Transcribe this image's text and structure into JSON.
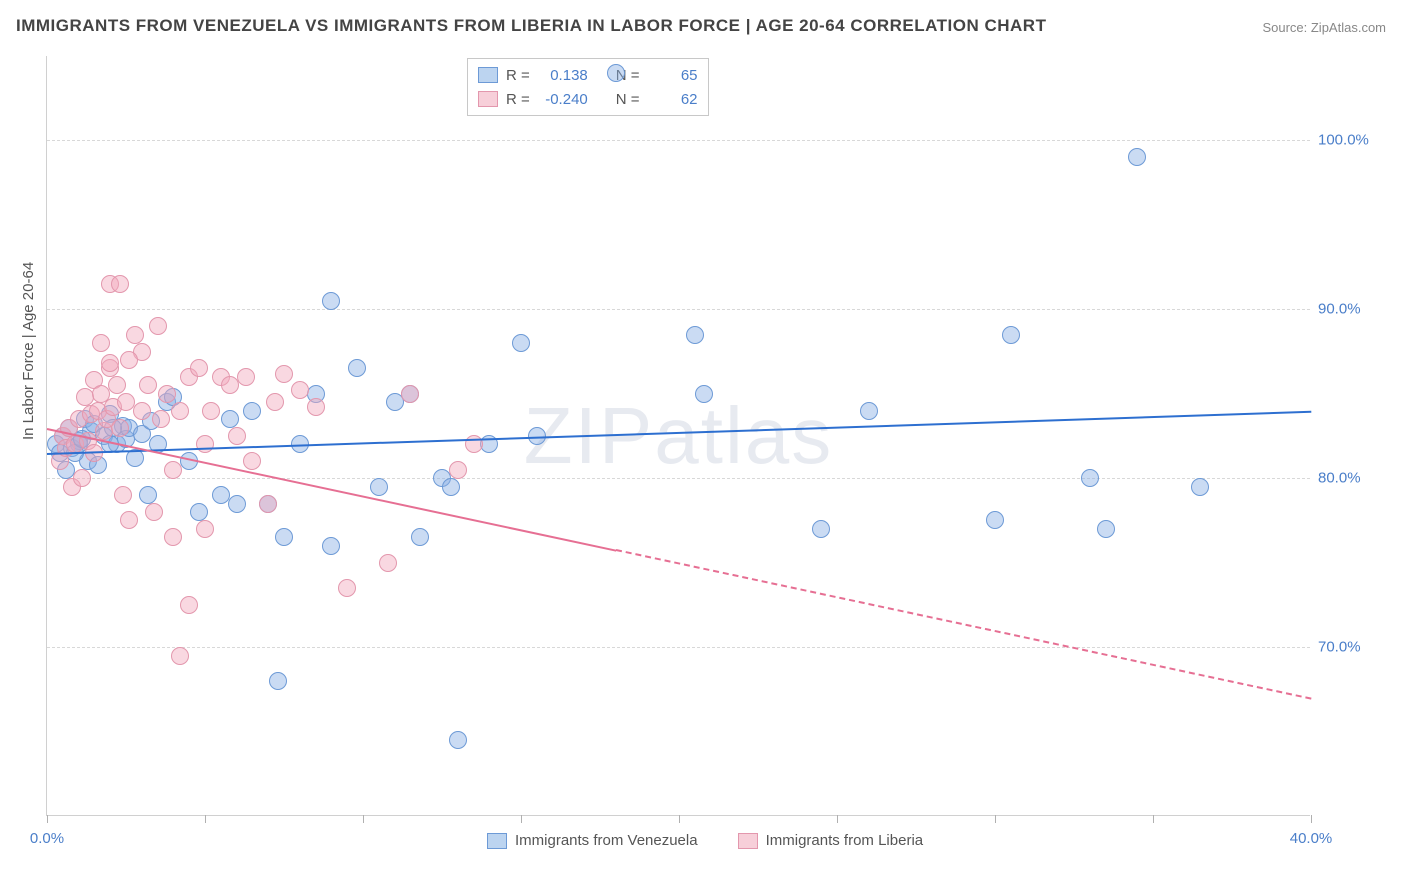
{
  "title": "IMMIGRANTS FROM VENEZUELA VS IMMIGRANTS FROM LIBERIA IN LABOR FORCE | AGE 20-64 CORRELATION CHART",
  "source": "Source: ZipAtlas.com",
  "watermark": "ZIPatlas",
  "ylabel": "In Labor Force | Age 20-64",
  "chart": {
    "type": "scatter",
    "xlim": [
      0,
      40
    ],
    "ylim": [
      60,
      105
    ],
    "x_ticks": [
      0,
      5,
      10,
      15,
      20,
      25,
      30,
      35,
      40
    ],
    "x_tick_labels": {
      "0": "0.0%",
      "40": "40.0%"
    },
    "y_gridlines": [
      70,
      80,
      90,
      100
    ],
    "y_tick_labels": {
      "70": "70.0%",
      "80": "80.0%",
      "90": "90.0%",
      "100": "100.0%"
    },
    "background_color": "#ffffff",
    "grid_color": "#d8d8d8",
    "marker_radius": 9,
    "marker_stroke_width": 1,
    "series": [
      {
        "name": "Immigrants from Venezuela",
        "fill_color": "rgba(137,175,229,0.45)",
        "stroke_color": "#6d9ad6",
        "swatch_fill": "#bcd4f0",
        "swatch_border": "#6d9ad6",
        "r_label": "R =",
        "r_value": "0.138",
        "n_label": "N =",
        "n_value": "65",
        "trend": {
          "x1": 0,
          "y1": 81.5,
          "x2": 40,
          "y2": 84.0,
          "color": "#2d6fd0",
          "solid_until_x": 40
        },
        "points": [
          [
            0.3,
            82.0
          ],
          [
            0.4,
            81.5
          ],
          [
            0.5,
            82.5
          ],
          [
            0.6,
            80.5
          ],
          [
            0.7,
            83.0
          ],
          [
            0.8,
            81.8
          ],
          [
            1.0,
            82.2
          ],
          [
            1.2,
            83.5
          ],
          [
            1.3,
            81.0
          ],
          [
            1.4,
            82.8
          ],
          [
            1.5,
            83.2
          ],
          [
            1.6,
            80.8
          ],
          [
            1.8,
            82.5
          ],
          [
            2.0,
            83.8
          ],
          [
            2.2,
            82.0
          ],
          [
            2.4,
            83.1
          ],
          [
            2.0,
            82.0
          ],
          [
            2.5,
            82.3
          ],
          [
            2.6,
            83.0
          ],
          [
            2.8,
            81.2
          ],
          [
            3.0,
            82.6
          ],
          [
            3.2,
            79.0
          ],
          [
            3.3,
            83.4
          ],
          [
            3.5,
            82.0
          ],
          [
            3.8,
            84.5
          ],
          [
            4.0,
            84.8
          ],
          [
            4.5,
            81.0
          ],
          [
            4.8,
            78.0
          ],
          [
            5.5,
            79.0
          ],
          [
            5.8,
            83.5
          ],
          [
            6.0,
            78.5
          ],
          [
            6.5,
            84.0
          ],
          [
            7.0,
            78.5
          ],
          [
            7.5,
            76.5
          ],
          [
            7.3,
            68.0
          ],
          [
            8.0,
            82.0
          ],
          [
            8.5,
            85.0
          ],
          [
            9.0,
            76.0
          ],
          [
            9.0,
            90.5
          ],
          [
            9.8,
            86.5
          ],
          [
            10.5,
            79.5
          ],
          [
            11.0,
            84.5
          ],
          [
            11.5,
            85.0
          ],
          [
            11.8,
            76.5
          ],
          [
            12.5,
            80.0
          ],
          [
            12.8,
            79.5
          ],
          [
            13.0,
            64.5
          ],
          [
            14.0,
            82.0
          ],
          [
            15.0,
            88.0
          ],
          [
            15.5,
            82.5
          ],
          [
            18.0,
            104.0
          ],
          [
            20.5,
            88.5
          ],
          [
            20.8,
            85.0
          ],
          [
            24.5,
            77.0
          ],
          [
            26.0,
            84.0
          ],
          [
            30.0,
            77.5
          ],
          [
            30.5,
            88.5
          ],
          [
            33.0,
            80.0
          ],
          [
            33.5,
            77.0
          ],
          [
            34.5,
            99.0
          ],
          [
            36.5,
            79.5
          ],
          [
            2.1,
            83.0
          ],
          [
            1.0,
            82.0
          ],
          [
            0.9,
            81.5
          ],
          [
            1.1,
            82.3
          ]
        ]
      },
      {
        "name": "Immigrants from Liberia",
        "fill_color": "rgba(242,169,189,0.45)",
        "stroke_color": "#e397ad",
        "swatch_fill": "#f7cfd9",
        "swatch_border": "#e397ad",
        "r_label": "R =",
        "r_value": "-0.240",
        "n_label": "N =",
        "n_value": "62",
        "trend": {
          "x1": 0,
          "y1": 83.0,
          "x2": 40,
          "y2": 67.0,
          "color": "#e66f93",
          "solid_until_x": 18
        },
        "points": [
          [
            0.4,
            81.0
          ],
          [
            0.5,
            82.5
          ],
          [
            0.6,
            81.8
          ],
          [
            0.7,
            83.0
          ],
          [
            0.8,
            79.5
          ],
          [
            0.9,
            82.0
          ],
          [
            1.0,
            83.5
          ],
          [
            1.1,
            80.0
          ],
          [
            1.2,
            84.8
          ],
          [
            1.3,
            82.2
          ],
          [
            1.4,
            83.8
          ],
          [
            1.5,
            81.5
          ],
          [
            1.5,
            85.8
          ],
          [
            1.6,
            84.0
          ],
          [
            1.7,
            85.0
          ],
          [
            1.8,
            82.8
          ],
          [
            1.9,
            83.5
          ],
          [
            2.0,
            86.5
          ],
          [
            2.1,
            84.2
          ],
          [
            2.2,
            85.5
          ],
          [
            2.3,
            83.0
          ],
          [
            2.0,
            91.5
          ],
          [
            2.3,
            91.5
          ],
          [
            2.4,
            79.0
          ],
          [
            2.5,
            84.5
          ],
          [
            2.6,
            77.5
          ],
          [
            2.8,
            88.5
          ],
          [
            3.0,
            84.0
          ],
          [
            3.0,
            87.5
          ],
          [
            3.2,
            85.5
          ],
          [
            3.4,
            78.0
          ],
          [
            3.5,
            89.0
          ],
          [
            3.6,
            83.5
          ],
          [
            3.8,
            85.0
          ],
          [
            4.0,
            80.5
          ],
          [
            4.0,
            76.5
          ],
          [
            4.2,
            84.0
          ],
          [
            4.5,
            86.0
          ],
          [
            4.5,
            72.5
          ],
          [
            4.8,
            86.5
          ],
          [
            5.0,
            82.0
          ],
          [
            5.0,
            77.0
          ],
          [
            5.2,
            84.0
          ],
          [
            5.5,
            86.0
          ],
          [
            5.8,
            85.5
          ],
          [
            4.2,
            69.5
          ],
          [
            2.0,
            86.8
          ],
          [
            6.0,
            82.5
          ],
          [
            6.3,
            86.0
          ],
          [
            6.5,
            81.0
          ],
          [
            7.0,
            78.5
          ],
          [
            7.2,
            84.5
          ],
          [
            7.5,
            86.2
          ],
          [
            8.0,
            85.2
          ],
          [
            8.5,
            84.2
          ],
          [
            9.5,
            73.5
          ],
          [
            10.8,
            75.0
          ],
          [
            11.5,
            85.0
          ],
          [
            13.0,
            80.5
          ],
          [
            13.5,
            82.0
          ],
          [
            1.7,
            88.0
          ],
          [
            2.6,
            87.0
          ]
        ]
      }
    ]
  }
}
